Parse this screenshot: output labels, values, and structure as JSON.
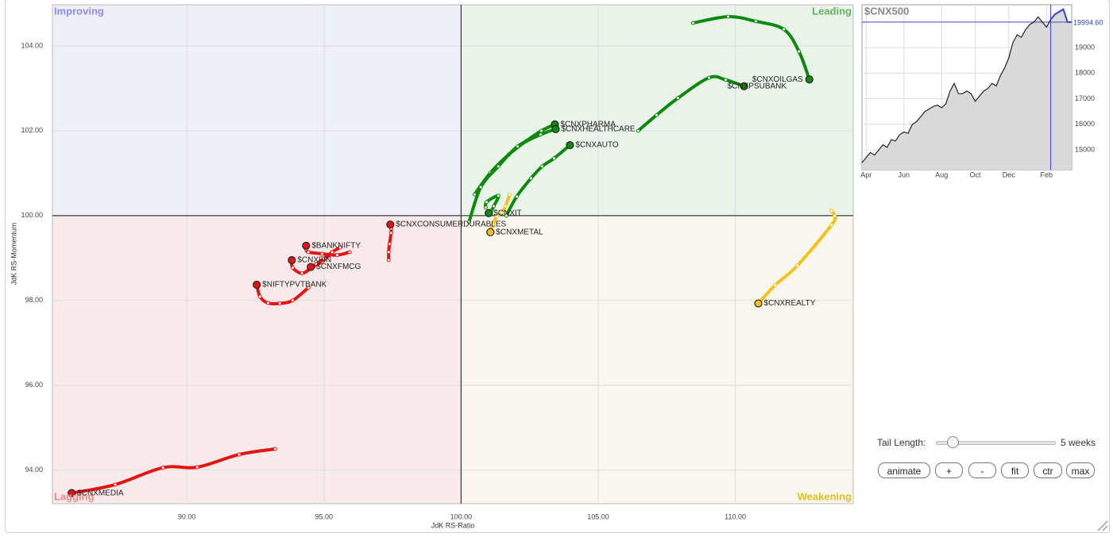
{
  "chart_data": [
    {
      "type": "rrg",
      "x_label": "JdK RS-Ratio",
      "y_label": "JdK RS-Momentum",
      "xlim": [
        85.1,
        114.3
      ],
      "ylim": [
        93.21,
        104.97
      ],
      "xticks": [
        {
          "value": 90,
          "label": "90.00"
        },
        {
          "value": 95,
          "label": "95.00"
        },
        {
          "value": 100,
          "label": "100.00"
        },
        {
          "value": 105,
          "label": "105.00"
        },
        {
          "value": 110,
          "label": "110.00"
        }
      ],
      "yticks": [
        {
          "value": 94,
          "label": "94.00"
        },
        {
          "value": 96,
          "label": "96.00"
        },
        {
          "value": 98,
          "label": "98.00"
        },
        {
          "value": 100,
          "label": "100.00"
        },
        {
          "value": 102,
          "label": "102.00"
        },
        {
          "value": 104,
          "label": "104.00"
        }
      ],
      "center": [
        100,
        100
      ],
      "grid": true,
      "quadrants": [
        {
          "name": "Improving",
          "color": "#8c8ce6",
          "fill": "#efeff8"
        },
        {
          "name": "Leading",
          "color": "#62b462",
          "fill": "#eaf3ea"
        },
        {
          "name": "Lagging",
          "color": "#f08a8a",
          "fill": "#f8eaea"
        },
        {
          "name": "Weakening",
          "color": "#e2c020",
          "fill": "#f8f6ee"
        }
      ],
      "series": [
        {
          "name": "$CNXOILGAS",
          "color": "#0a8a0a",
          "x": [
            108.46,
            109.74,
            110.75,
            111.77,
            112.32,
            112.7
          ],
          "values": [
            104.54,
            104.69,
            104.58,
            104.39,
            103.87,
            103.21
          ]
        },
        {
          "name": "$CNXPSUBANK",
          "color": "#0a8a0a",
          "x": [
            106.46,
            107.13,
            107.91,
            109.04,
            109.65,
            110.32
          ],
          "values": [
            102.0,
            102.37,
            102.77,
            103.25,
            103.2,
            103.05
          ]
        },
        {
          "name": "$CNXPHARMA",
          "color": "#0a8a0a",
          "x": [
            100.49,
            101.07,
            101.74,
            102.38,
            102.93,
            103.42
          ],
          "values": [
            100.5,
            101.01,
            101.44,
            101.76,
            102.0,
            102.15
          ]
        },
        {
          "name": "$CNXHEALTHCARE",
          "color": "#0a8a0a",
          "x": [
            100.29,
            100.72,
            101.36,
            102.06,
            102.9,
            103.45
          ],
          "values": [
            99.85,
            100.67,
            101.16,
            101.63,
            101.91,
            102.04
          ]
        },
        {
          "name": "$CNXAUTO",
          "color": "#0a8a0a",
          "x": [
            101.65,
            102.03,
            102.55,
            102.96,
            103.39,
            103.97
          ],
          "values": [
            100.0,
            100.45,
            100.88,
            101.16,
            101.35,
            101.66
          ]
        },
        {
          "name": "$CNXIT",
          "color": "#0a8a0a",
          "x": [
            100.9,
            100.93,
            101.36,
            101.19,
            101.1,
            101.01
          ],
          "values": [
            100.19,
            100.32,
            100.47,
            100.22,
            100.11,
            100.06
          ]
        },
        {
          "name": "$CNXMETAL",
          "color": "#f2c21b",
          "x": [
            101.77,
            101.62,
            101.48,
            101.3,
            101.16,
            101.07
          ],
          "values": [
            100.49,
            100.22,
            100.07,
            99.98,
            99.79,
            99.61
          ]
        },
        {
          "name": "$CNXREALTY",
          "color": "#f2c21b",
          "x": [
            113.51,
            113.62,
            113.51,
            112.26,
            111.45,
            110.84
          ],
          "values": [
            100.11,
            100.0,
            99.78,
            98.82,
            98.36,
            97.93
          ]
        },
        {
          "name": "$CNXCONSUMERDURABLES",
          "color": "#e51414",
          "x": [
            97.36,
            97.36,
            97.39,
            97.45,
            97.45,
            97.42
          ],
          "values": [
            98.95,
            99.14,
            99.33,
            99.59,
            99.7,
            99.79
          ]
        },
        {
          "name": "$BANKNIFTY",
          "color": "#e51414",
          "x": [
            95.94,
            95.48,
            94.93,
            94.43,
            94.35,
            94.35
          ],
          "values": [
            99.14,
            99.07,
            99.1,
            99.14,
            99.21,
            99.29
          ]
        },
        {
          "name": "$CNXFIN",
          "color": "#e51414",
          "x": [
            95.25,
            94.93,
            94.55,
            94.2,
            93.86,
            93.83
          ],
          "values": [
            99.1,
            98.92,
            98.77,
            98.64,
            98.77,
            98.95
          ]
        },
        {
          "name": "$CNXFMCG",
          "color": "#e51414",
          "x": [
            95.59,
            95.3,
            95.01,
            94.72,
            94.57,
            94.52
          ],
          "values": [
            99.25,
            99.14,
            98.99,
            98.86,
            98.8,
            98.79
          ]
        },
        {
          "name": "$NIFTYPVTBANK",
          "color": "#e51414",
          "x": [
            94.43,
            93.86,
            93.39,
            92.96,
            92.67,
            92.55
          ],
          "values": [
            98.3,
            98.0,
            97.93,
            97.94,
            98.09,
            98.37
          ]
        },
        {
          "name": "$CNXMEDIA",
          "color": "#e51414",
          "x": [
            93.22,
            91.91,
            90.38,
            89.13,
            87.39,
            85.8
          ],
          "values": [
            94.5,
            94.37,
            94.07,
            94.06,
            93.66,
            93.46
          ]
        }
      ]
    },
    {
      "type": "area",
      "title": "$CNX500",
      "x": [
        0,
        1,
        2,
        3,
        4,
        5,
        6,
        7,
        8,
        9,
        10,
        11,
        12,
        13,
        14,
        15,
        16,
        17,
        18,
        19,
        20,
        21,
        22,
        23,
        24,
        25,
        26,
        27,
        28,
        29,
        30,
        31,
        32,
        33,
        34,
        35,
        36,
        37,
        38,
        39,
        40,
        41,
        42,
        43,
        44,
        45,
        46,
        47,
        48,
        49,
        50
      ],
      "values": [
        14500,
        14700,
        14900,
        14800,
        15000,
        15200,
        15100,
        15400,
        15350,
        15600,
        15700,
        15650,
        16000,
        16100,
        16300,
        16500,
        16600,
        16700,
        16750,
        16650,
        16800,
        17300,
        17600,
        17200,
        17200,
        17300,
        17200,
        16900,
        17100,
        17300,
        17400,
        17600,
        17500,
        17900,
        18200,
        18600,
        19200,
        19500,
        19400,
        19700,
        19900,
        20000,
        20200,
        20000,
        19800,
        20100,
        20300,
        20400,
        20500,
        20000,
        19994.6
      ],
      "xlim": [
        0,
        50
      ],
      "ylim": [
        14225,
        20674
      ],
      "xticks": [
        {
          "value": 1,
          "label": "Apr"
        },
        {
          "value": 10,
          "label": "Jun"
        },
        {
          "value": 19,
          "label": "Aug"
        },
        {
          "value": 27,
          "label": "Oct"
        },
        {
          "value": 35,
          "label": "Dec"
        },
        {
          "value": 44,
          "label": "Feb"
        }
      ],
      "yticks": [
        15000,
        16000,
        17000,
        18000,
        19000
      ],
      "color": "#222222",
      "fill": "#d9d9d9",
      "highlight_color": "#3344cc",
      "highlight_start": 45,
      "last_label": "19994.60",
      "grid": true
    }
  ],
  "controls": {
    "tail_label": "Tail Length:",
    "tail_value": "5 weeks",
    "buttons": [
      "animate",
      "+",
      "-",
      "fit",
      "ctr",
      "max"
    ]
  }
}
